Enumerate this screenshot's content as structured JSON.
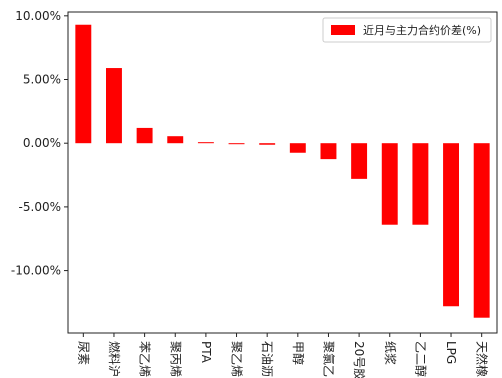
{
  "chart_data": {
    "type": "bar",
    "title": "",
    "xlabel": "",
    "ylabel": "",
    "categories": [
      "尿素",
      "燃料油",
      "苯乙烯",
      "聚丙烯",
      "PTA",
      "聚乙烯",
      "石油沥青",
      "甲醇",
      "聚氯乙烯",
      "20号胶",
      "纸浆",
      "乙二醇",
      "LPG",
      "天然橡胶"
    ],
    "category_labels_visible": [
      "尿素",
      "燃料沪",
      "苯乙烯",
      "聚丙烯",
      "PTA",
      "聚乙烯",
      "石油沥",
      "甲醇",
      "聚氯乙",
      "20号胶",
      "纸浆",
      "乙二醇",
      "LPG",
      "天然橡"
    ],
    "series": [
      {
        "name": "近月与主力合约价差(%)",
        "color": "#ff0000",
        "values": [
          9.3,
          5.9,
          1.2,
          0.55,
          0.08,
          -0.05,
          -0.12,
          -0.75,
          -1.25,
          -2.8,
          -6.4,
          -6.4,
          -12.8,
          -13.7
        ]
      }
    ],
    "ylim": [
      -14.9,
      10.3
    ],
    "yticks": [
      10,
      5,
      0,
      -5,
      -10
    ],
    "ytick_labels": [
      "10.00%",
      "5.00%",
      "0.00%",
      "-5.00%",
      "-10.00%"
    ],
    "legend_position": "top-right",
    "grid": false
  }
}
